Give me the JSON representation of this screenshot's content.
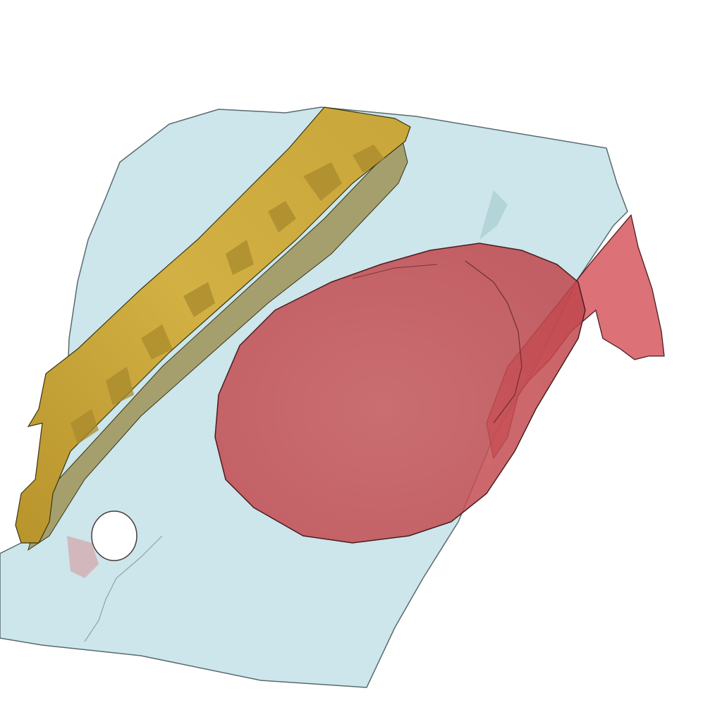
{
  "scene": {
    "background": "#ffffff",
    "objects": [
      {
        "id": "translucent-slab",
        "color": "#b8dde3",
        "opacity": 0.72,
        "edge_color": "#5a6a6e"
      },
      {
        "id": "yellow-bar",
        "color": "#c9a63a",
        "highlight": "#e2c45a",
        "shadow": "#8f7a2a",
        "edge_color": "#3a3415"
      },
      {
        "id": "red-ellipsoid",
        "color": "#c8484e",
        "opacity": 0.72,
        "edge_color": "#4a1c1e"
      },
      {
        "id": "red-sheet",
        "color": "#cf3a44",
        "opacity": 0.72,
        "edge_color": "#4a1c1e"
      },
      {
        "id": "hole",
        "color": "#ffffff"
      }
    ]
  }
}
